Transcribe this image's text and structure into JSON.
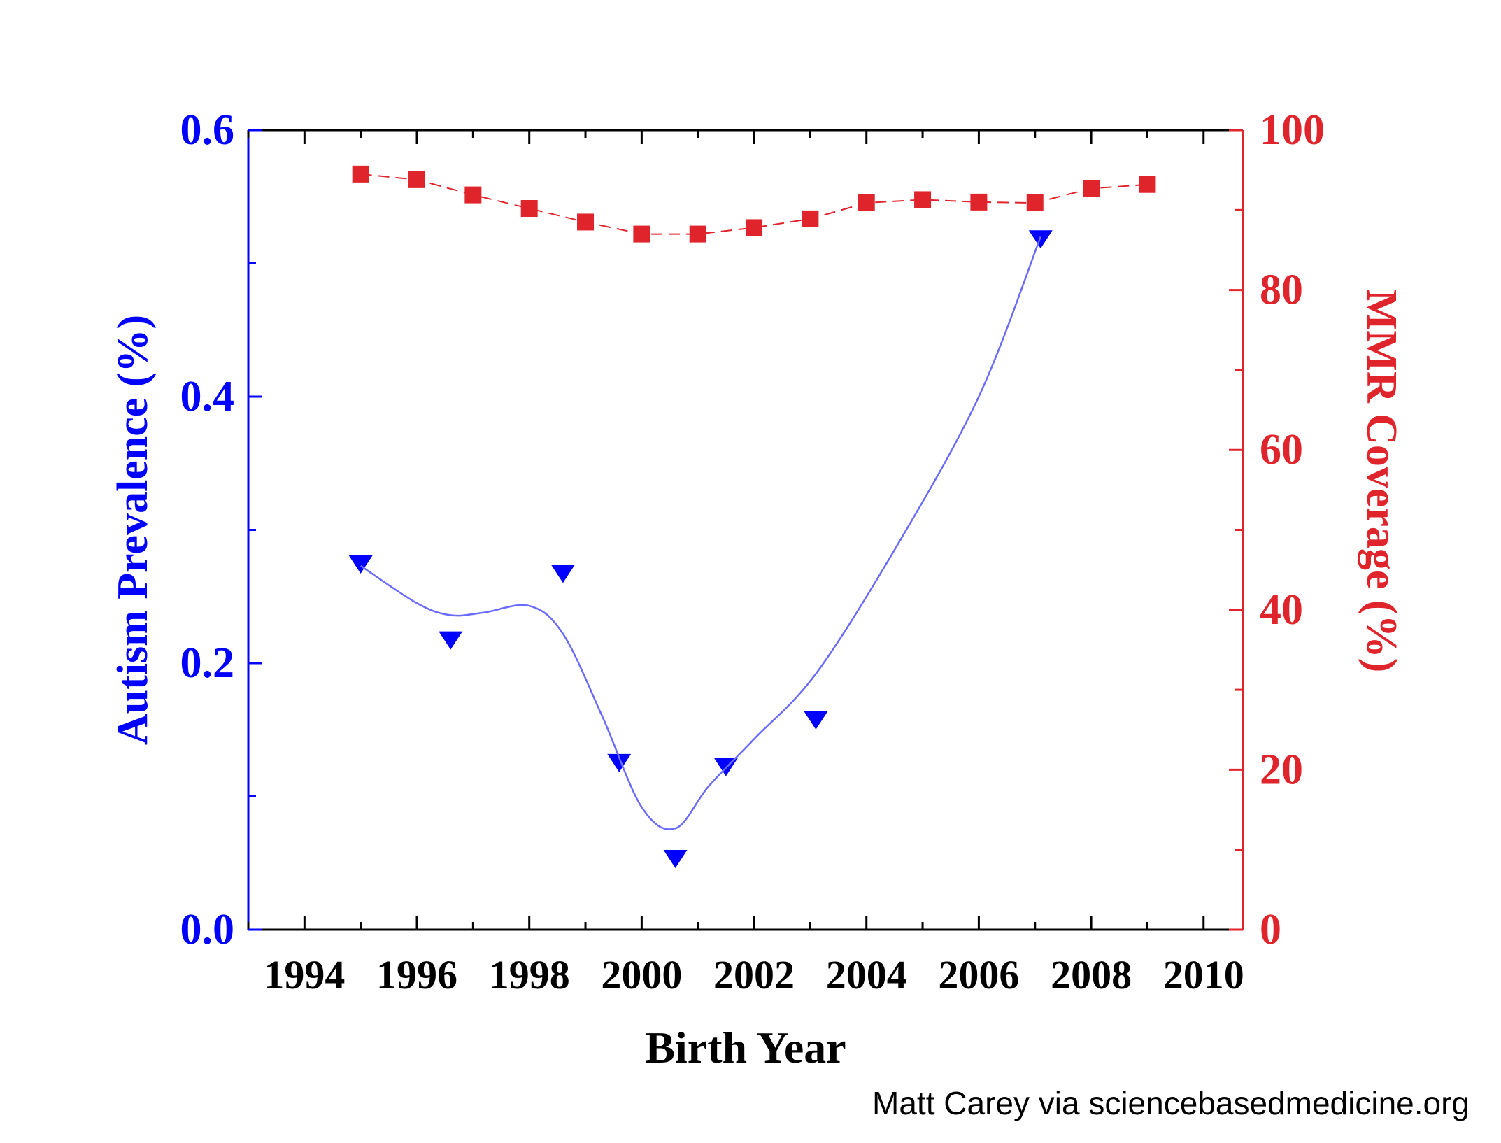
{
  "chart_data": {
    "type": "line",
    "title": "",
    "xlabel": "Birth Year",
    "xlim": [
      1993,
      2010.7
    ],
    "x_ticks": [
      1994,
      1996,
      1998,
      2000,
      2002,
      2004,
      2006,
      2008,
      2010
    ],
    "x_tick_labels": [
      "1994",
      "1996",
      "1998",
      "2000",
      "2002",
      "2004",
      "2006",
      "2008",
      "2010"
    ],
    "y_left": {
      "label": "Autism Prevalence (%)",
      "ylim": [
        0.0,
        0.6
      ],
      "ticks": [
        0.0,
        0.2,
        0.4,
        0.6
      ],
      "tick_labels": [
        "0.0",
        "0.2",
        "0.4",
        "0.6"
      ],
      "color": "#0000ff"
    },
    "y_right": {
      "label": "MMR Coverage (%)",
      "ylim": [
        0,
        100
      ],
      "ticks": [
        0,
        20,
        40,
        60,
        80,
        100
      ],
      "tick_labels": [
        "0",
        "20",
        "40",
        "60",
        "80",
        "100"
      ],
      "color": "#e0242b"
    },
    "series": [
      {
        "name": "Autism Prevalence",
        "axis": "left",
        "marker": "triangle-down",
        "color": "#0000ff",
        "x": [
          1995.0,
          1996.6,
          1998.6,
          1999.6,
          2000.6,
          2001.5,
          2003.1,
          2007.1
        ],
        "y": [
          0.274,
          0.217,
          0.267,
          0.125,
          0.053,
          0.122,
          0.157,
          0.518
        ]
      },
      {
        "name": "Autism Prevalence smoothed fit",
        "axis": "left",
        "style": "smooth-line",
        "color": "#6a6aff",
        "x": [
          1995.0,
          1996.0,
          1996.6,
          1997.2,
          1998.0,
          1998.6,
          1999.3,
          2000.0,
          2000.6,
          2001.2,
          2002.0,
          2003.1,
          2004.5,
          2006.0,
          2007.1
        ],
        "y": [
          0.273,
          0.245,
          0.236,
          0.238,
          0.243,
          0.222,
          0.16,
          0.092,
          0.076,
          0.108,
          0.143,
          0.192,
          0.285,
          0.4,
          0.52
        ]
      },
      {
        "name": "MMR Coverage",
        "axis": "right",
        "marker": "square",
        "line": "dashed",
        "color": "#e0242b",
        "x": [
          1995,
          1996,
          1997,
          1998,
          1999,
          2000,
          2001,
          2002,
          2003,
          2004,
          2005,
          2006,
          2007,
          2008,
          2009
        ],
        "y": [
          94.5,
          93.8,
          91.9,
          90.2,
          88.5,
          87.0,
          87.0,
          87.8,
          88.9,
          90.9,
          91.3,
          91.0,
          90.9,
          92.7,
          93.2
        ]
      }
    ]
  },
  "credit": "Matt Carey via sciencebasedmedicine.org"
}
